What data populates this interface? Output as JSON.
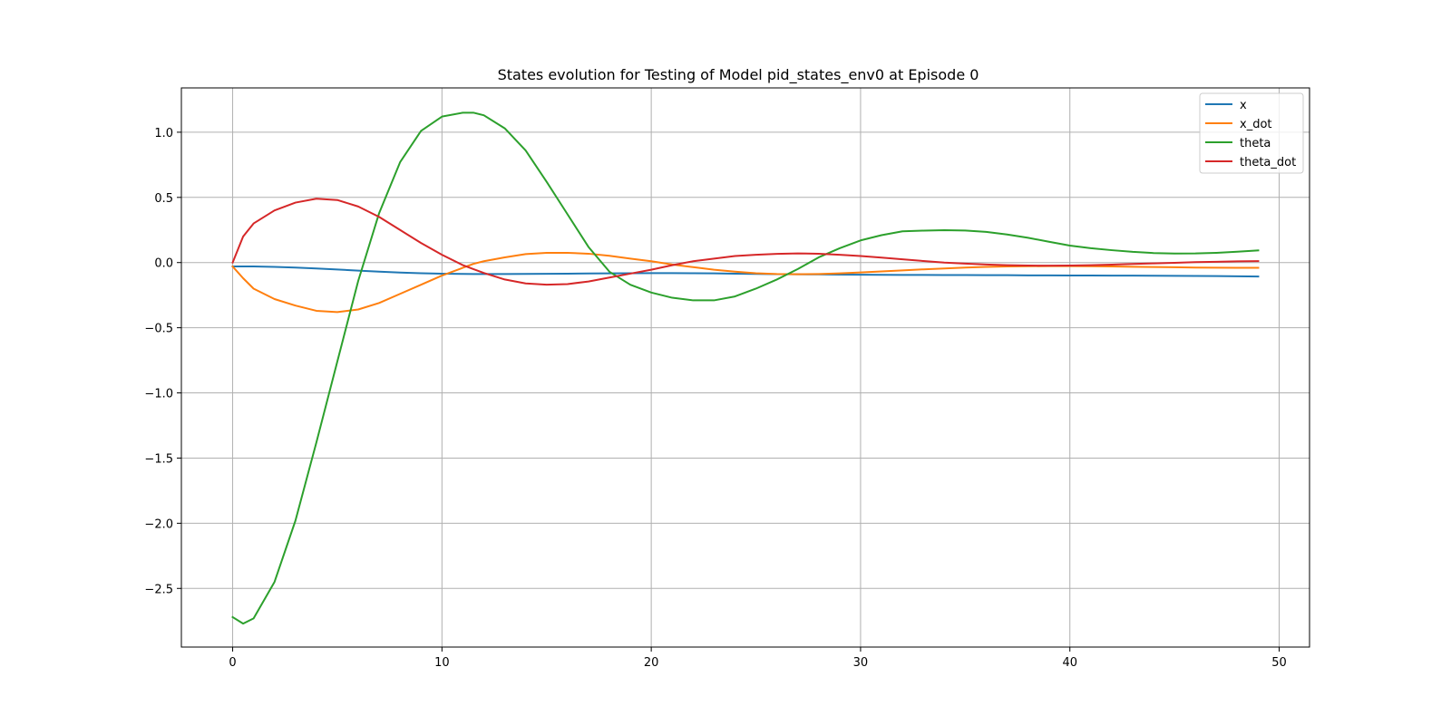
{
  "chart_data": {
    "type": "line",
    "title": "States evolution for Testing of Model pid_states_env0 at Episode 0",
    "xlabel": "",
    "ylabel": "",
    "xlim": [
      -2.45,
      51.45
    ],
    "ylim": [
      -2.95,
      1.34
    ],
    "xticks": [
      0,
      10,
      20,
      30,
      40,
      50
    ],
    "xtick_labels": [
      "0",
      "10",
      "20",
      "30",
      "40",
      "50"
    ],
    "yticks": [
      1.0,
      0.5,
      0.0,
      -0.5,
      -1.0,
      -1.5,
      -2.0,
      -2.5
    ],
    "ytick_labels": [
      "1.0",
      "0.5",
      "0.0",
      "−0.5",
      "−1.0",
      "−1.5",
      "−2.0",
      "−2.5"
    ],
    "grid": true,
    "legend_position": "top-right",
    "x": [
      0,
      0.5,
      1,
      2,
      3,
      4,
      5,
      6,
      7,
      8,
      9,
      10,
      11,
      11.5,
      12,
      13,
      14,
      15,
      16,
      17,
      18,
      19,
      20,
      21,
      22,
      23,
      24,
      25,
      26,
      27,
      28,
      29,
      30,
      31,
      32,
      33,
      34,
      35,
      36,
      37,
      38,
      39,
      40,
      41,
      42,
      43,
      44,
      45,
      46,
      47,
      48,
      49
    ],
    "series": [
      {
        "name": "x",
        "color": "#1f77b4",
        "values": [
          -0.03,
          -0.03,
          -0.03,
          -0.033,
          -0.038,
          -0.045,
          -0.053,
          -0.062,
          -0.07,
          -0.077,
          -0.082,
          -0.085,
          -0.087,
          -0.088,
          -0.088,
          -0.088,
          -0.087,
          -0.086,
          -0.085,
          -0.084,
          -0.083,
          -0.082,
          -0.081,
          -0.081,
          -0.082,
          -0.083,
          -0.085,
          -0.087,
          -0.089,
          -0.09,
          -0.091,
          -0.092,
          -0.093,
          -0.094,
          -0.095,
          -0.095,
          -0.096,
          -0.096,
          -0.097,
          -0.097,
          -0.098,
          -0.098,
          -0.099,
          -0.099,
          -0.1,
          -0.1,
          -0.101,
          -0.102,
          -0.103,
          -0.104,
          -0.105,
          -0.107
        ]
      },
      {
        "name": "x_dot",
        "color": "#ff7f0e",
        "values": [
          -0.03,
          -0.12,
          -0.2,
          -0.28,
          -0.33,
          -0.37,
          -0.38,
          -0.36,
          -0.31,
          -0.24,
          -0.17,
          -0.1,
          -0.04,
          -0.01,
          0.01,
          0.04,
          0.065,
          0.075,
          0.075,
          0.068,
          0.052,
          0.03,
          0.01,
          -0.015,
          -0.035,
          -0.055,
          -0.07,
          -0.082,
          -0.088,
          -0.09,
          -0.088,
          -0.083,
          -0.076,
          -0.068,
          -0.06,
          -0.052,
          -0.045,
          -0.038,
          -0.033,
          -0.03,
          -0.028,
          -0.027,
          -0.027,
          -0.028,
          -0.03,
          -0.032,
          -0.034,
          -0.036,
          -0.038,
          -0.039,
          -0.04,
          -0.04
        ]
      },
      {
        "name": "theta",
        "color": "#2ca02c",
        "values": [
          -2.72,
          -2.77,
          -2.73,
          -2.45,
          -1.98,
          -1.38,
          -0.76,
          -0.14,
          0.38,
          0.77,
          1.01,
          1.12,
          1.15,
          1.15,
          1.13,
          1.03,
          0.86,
          0.62,
          0.37,
          0.12,
          -0.07,
          -0.17,
          -0.23,
          -0.27,
          -0.29,
          -0.29,
          -0.26,
          -0.2,
          -0.13,
          -0.05,
          0.04,
          0.11,
          0.17,
          0.21,
          0.24,
          0.245,
          0.248,
          0.246,
          0.235,
          0.215,
          0.19,
          0.16,
          0.13,
          0.11,
          0.095,
          0.082,
          0.073,
          0.069,
          0.07,
          0.075,
          0.083,
          0.093
        ]
      },
      {
        "name": "theta_dot",
        "color": "#d62728",
        "values": [
          0.0,
          0.2,
          0.3,
          0.4,
          0.46,
          0.49,
          0.48,
          0.43,
          0.35,
          0.25,
          0.15,
          0.06,
          -0.02,
          -0.05,
          -0.08,
          -0.13,
          -0.16,
          -0.17,
          -0.165,
          -0.145,
          -0.115,
          -0.085,
          -0.055,
          -0.02,
          0.01,
          0.03,
          0.05,
          0.06,
          0.067,
          0.07,
          0.068,
          0.06,
          0.05,
          0.038,
          0.025,
          0.012,
          0.0,
          -0.008,
          -0.015,
          -0.02,
          -0.023,
          -0.024,
          -0.023,
          -0.02,
          -0.016,
          -0.011,
          -0.006,
          -0.002,
          0.003,
          0.006,
          0.009,
          0.011
        ]
      }
    ]
  }
}
